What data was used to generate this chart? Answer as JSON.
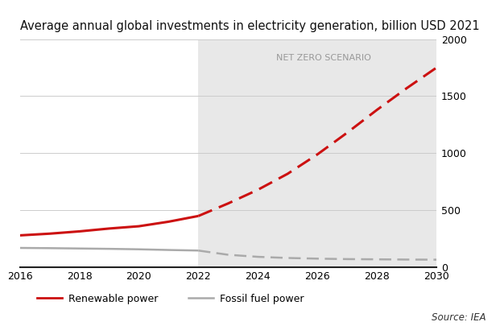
{
  "title": "Average annual global investments in electricity generation, billion USD 2021",
  "title_fontsize": 10.5,
  "source_text": "Source: IEA",
  "net_zero_label": "NET ZERO SCENARIO",
  "net_zero_start": 2022,
  "x_min": 2016,
  "x_max": 2030,
  "y_min": 0,
  "y_max": 2000,
  "yticks": [
    0,
    500,
    1000,
    1500,
    2000
  ],
  "xticks": [
    2016,
    2018,
    2020,
    2022,
    2024,
    2026,
    2028,
    2030
  ],
  "renewable_solid": {
    "x": [
      2016,
      2017,
      2018,
      2019,
      2020,
      2021,
      2022
    ],
    "y": [
      280,
      295,
      315,
      340,
      360,
      400,
      450
    ],
    "color": "#cc1111",
    "linewidth": 2.2
  },
  "renewable_dashed": {
    "x": [
      2022,
      2023,
      2024,
      2025,
      2026,
      2027,
      2028,
      2029,
      2030
    ],
    "y": [
      450,
      560,
      680,
      820,
      990,
      1180,
      1380,
      1570,
      1750
    ],
    "color": "#cc1111",
    "linewidth": 2.2
  },
  "fossil_solid": {
    "x": [
      2016,
      2017,
      2018,
      2019,
      2020,
      2021,
      2022
    ],
    "y": [
      170,
      168,
      165,
      162,
      158,
      152,
      147
    ],
    "color": "#aaaaaa",
    "linewidth": 1.8
  },
  "fossil_dashed": {
    "x": [
      2022,
      2023,
      2024,
      2025,
      2026,
      2027,
      2028,
      2029,
      2030
    ],
    "y": [
      147,
      110,
      92,
      82,
      76,
      72,
      70,
      68,
      67
    ],
    "color": "#aaaaaa",
    "linewidth": 1.8
  },
  "shading_color": "#dddddd",
  "shading_alpha": 0.65,
  "background_color": "#ffffff",
  "legend_renewable_label": "Renewable power",
  "legend_fossil_label": "Fossil fuel power",
  "grid_color": "#cccccc",
  "grid_linewidth": 0.7
}
